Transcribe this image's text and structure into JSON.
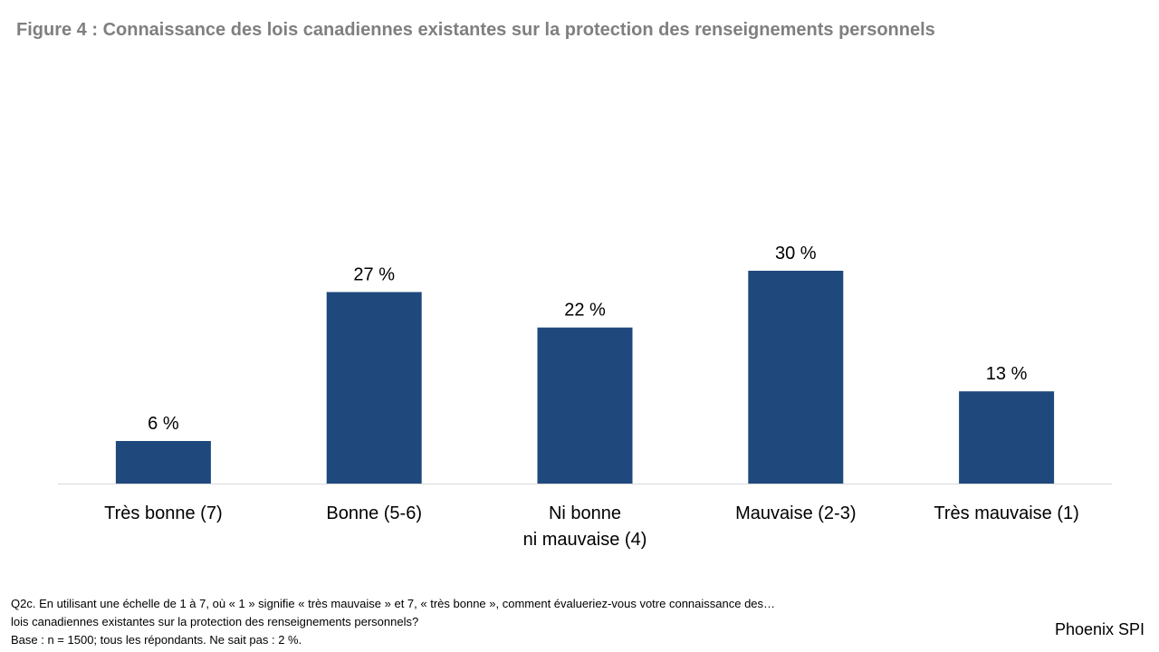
{
  "title": "Figure 4 : Connaissance des lois canadiennes existantes sur la protection des renseignements personnels",
  "chart_data": {
    "type": "bar",
    "title": "Figure 4 : Connaissance des lois canadiennes existantes sur la protection des renseignements personnels",
    "categories": [
      "Très bonne (7)",
      "Bonne (5-6)",
      "Ni bonne\nni mauvaise (4)",
      "Mauvaise (2-3)",
      "Très mauvaise (1)"
    ],
    "values": [
      6,
      27,
      22,
      30,
      13
    ],
    "value_labels": [
      "6 %",
      "27 %",
      "22 %",
      "30 %",
      "13 %"
    ],
    "unit": "%",
    "ylim": [
      0,
      30
    ],
    "grid": false,
    "bar_color": "#1f497d"
  },
  "footnote": {
    "line1": "Q2c. En utilisant une échelle de 1 à 7, où « 1 » signifie « très mauvaise » et 7, « très bonne », comment évalueriez-vous votre connaissance des…",
    "line2": "lois canadiennes existantes sur la protection des renseignements personnels?",
    "line3": "Base : n = 1500; tous les répondants. Ne sait pas : 2 %."
  },
  "brand": "Phoenix SPI"
}
